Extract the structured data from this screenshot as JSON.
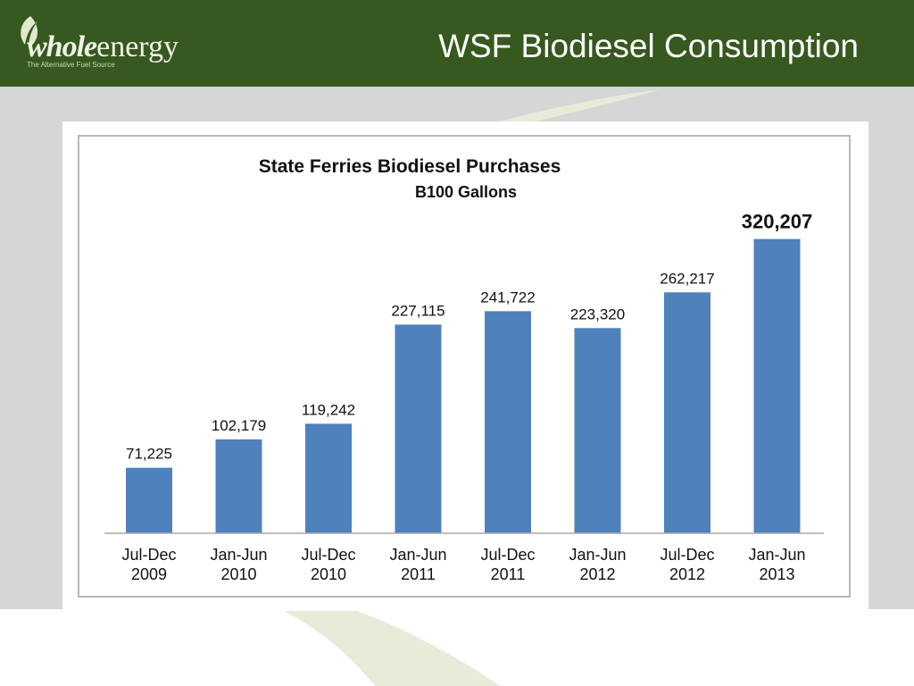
{
  "header": {
    "title": "WSF Biodiesel Consumption",
    "background_color": "#37591f"
  },
  "logo": {
    "word_part1": "whole",
    "word_part2": "energy",
    "tagline": "The Alternative Fuel Source",
    "icon": "leaf-icon"
  },
  "colors": {
    "bar": "#4f81bd",
    "band": "#d6d6d6",
    "accent_leaf": "#e7ecd9"
  },
  "chart_data": {
    "type": "bar",
    "title": "State Ferries Biodiesel Purchases",
    "subtitle": "B100 Gallons",
    "categories": [
      [
        "Jul-Dec",
        "2009"
      ],
      [
        "Jan-Jun",
        "2010"
      ],
      [
        "Jul-Dec",
        "2010"
      ],
      [
        "Jan-Jun",
        "2011"
      ],
      [
        "Jul-Dec",
        "2011"
      ],
      [
        "Jan-Jun",
        "2012"
      ],
      [
        "Jul-Dec",
        "2012"
      ],
      [
        "Jan-Jun",
        "2013"
      ]
    ],
    "values": [
      71225,
      102179,
      119242,
      227115,
      241722,
      223320,
      262217,
      320207
    ],
    "data_labels": [
      "71,225",
      "102,179",
      "119,242",
      "227,115",
      "241,722",
      "223,320",
      "262,217",
      "320,207"
    ],
    "highlighted_index": 7,
    "ylim": [
      0,
      350000
    ],
    "grid": false,
    "legend": "none"
  }
}
